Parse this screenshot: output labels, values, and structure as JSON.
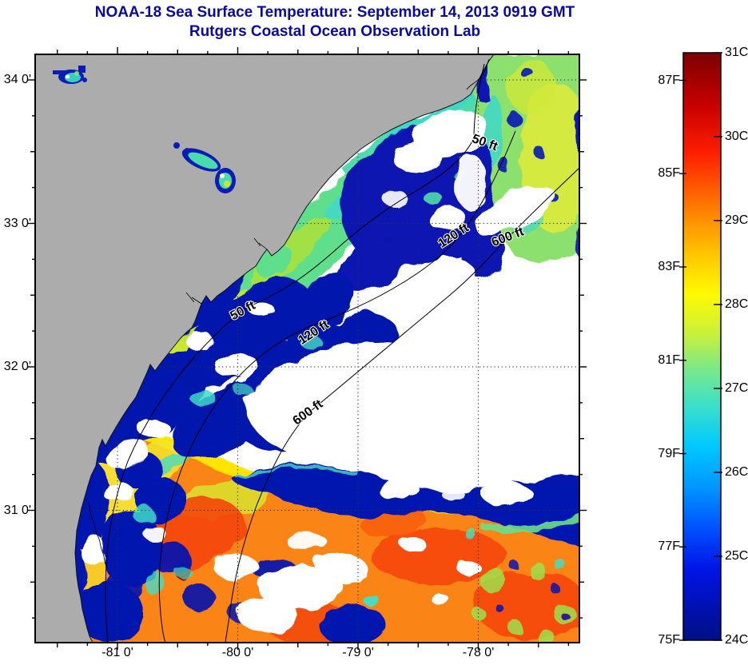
{
  "figure": {
    "title_line1": "NOAA-18 Sea Surface Temperature:  September 14, 2013 0919 GMT",
    "title_line2": "Rutgers Coastal Ocean Observation Lab"
  },
  "x_axis": {
    "tick_labels": [
      "-81 0'",
      "-80 0'",
      "-79 0'",
      "-78 0'"
    ]
  },
  "y_axis": {
    "tick_labels": [
      "34 0'",
      "33 0'",
      "32 0'",
      "31 0'"
    ]
  },
  "colorbar": {
    "celsius_ticks": [
      "31C",
      "30C",
      "29C",
      "28C",
      "27C",
      "26C",
      "25C",
      "24C"
    ],
    "fahrenheit_ticks": [
      "87F",
      "85F",
      "83F",
      "81F",
      "79F",
      "77F",
      "75F"
    ],
    "scale_min": "24C",
    "scale_max": "31C"
  },
  "map": {
    "contour_labels": [
      {
        "text": "50 ft"
      },
      {
        "text": "50 ft"
      },
      {
        "text": "120 ft"
      },
      {
        "text": "120 ft"
      },
      {
        "text": "600 ft"
      },
      {
        "text": "600 ft"
      }
    ]
  },
  "colors": {
    "title_text": "#0a0aa0",
    "land_gray": "#acacac",
    "cold_water_blue": "#0513ae",
    "coastal_green": "#5fde8c",
    "warm_water_orange": "#fb8414",
    "warm_patch_red": "#f4430b",
    "colorbar_top": "#7d0000",
    "colorbar_bottom": "#000f82"
  }
}
